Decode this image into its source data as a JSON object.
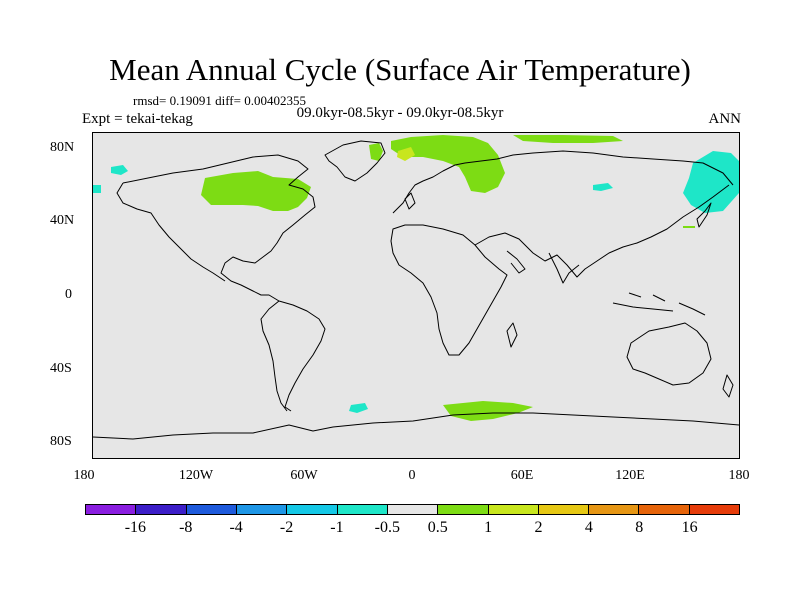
{
  "title": "Mean Annual Cycle (Surface Air Temperature)",
  "stats": "rmsd= 0.19091 diff= 0.00402355",
  "experiment": "Expt = tekai-tekag",
  "period": "09.0kyr-08.5kyr - 09.0kyr-08.5kyr",
  "season": "ANN",
  "y_axis_labels": [
    "80N",
    "40N",
    "0",
    "40S",
    "80S"
  ],
  "x_axis_labels": [
    "180",
    "120W",
    "60W",
    "0",
    "60E",
    "120E",
    "180"
  ],
  "colorbar": {
    "colors": [
      "#8a1ee0",
      "#3c1ec8",
      "#1e5adc",
      "#1e96e6",
      "#14c8e6",
      "#1ee6c8",
      "#e6e6e6",
      "#7ddc14",
      "#c8e61e",
      "#e6c814",
      "#e69614",
      "#e6640a",
      "#e63c0a"
    ],
    "labels": [
      "-16",
      "-8",
      "-4",
      "-2",
      "-1",
      "-0.5",
      "0.5",
      "1",
      "2",
      "4",
      "8",
      "16"
    ]
  },
  "anomaly_colors": {
    "positive_1": "#7ddc14",
    "positive_2": "#c8e61e",
    "negative_1": "#1ee6c8"
  }
}
